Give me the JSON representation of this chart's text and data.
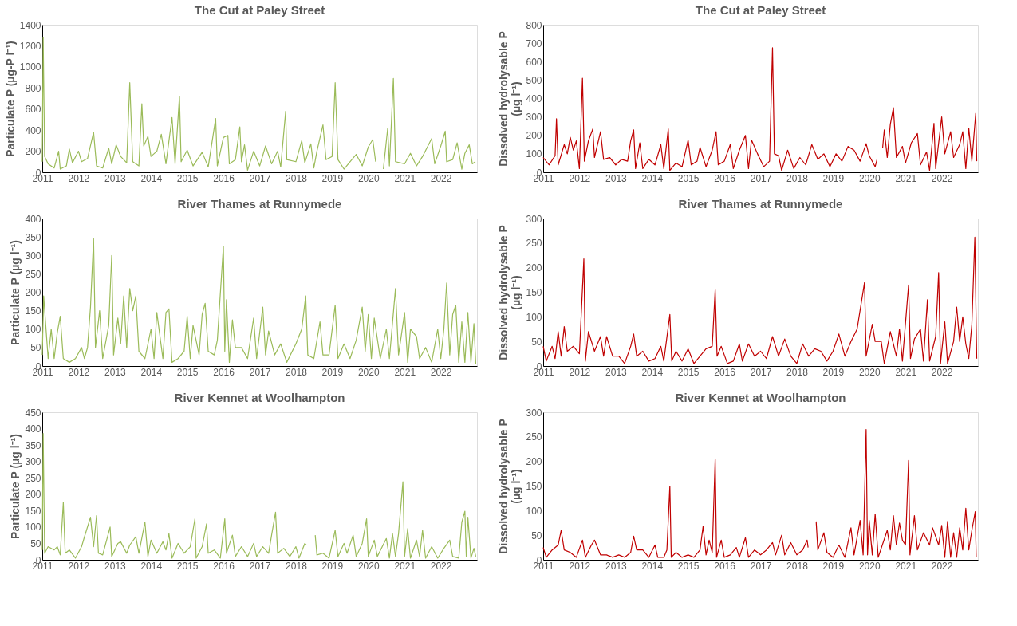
{
  "chart_data": [
    {
      "type": "line",
      "title": "The Cut at Paley Street",
      "ylabel": "Particulate P (µg-P l⁻¹)",
      "xlim": [
        "2011-01-01",
        "2023-01-01"
      ],
      "xticks": [
        "2011",
        "2012",
        "2013",
        "2014",
        "2015",
        "2016",
        "2017",
        "2018",
        "2019",
        "2020",
        "2021",
        "2022"
      ],
      "ylim": [
        0,
        1400
      ],
      "yticks": [
        0,
        200,
        400,
        600,
        800,
        1000,
        1200,
        1400
      ],
      "series": [
        {
          "color": "#9bbb59",
          "x": [
            "2011-01-01",
            "2011-01-10",
            "2011-01-25",
            "2011-03",
            "2011-05",
            "2011-06-15",
            "2011-07",
            "2011-09",
            "2011-10",
            "2011-11",
            "2012-01",
            "2012-02",
            "2012-04",
            "2012-06-01",
            "2012-07",
            "2012-09",
            "2012-11",
            "2012-12",
            "2013-01-15",
            "2013-03",
            "2013-05",
            "2013-06-01",
            "2013-07",
            "2013-09",
            "2013-10-01",
            "2013-10-20",
            "2013-12",
            "2014-01",
            "2014-03",
            "2014-04-15",
            "2014-06",
            "2014-08-01",
            "2014-09",
            "2014-10-15",
            "2014-11",
            "2015-01",
            "2015-03",
            "2015-06",
            "2015-08",
            "2015-10-15",
            "2015-11",
            "2016-01",
            "2016-02-15",
            "2016-03",
            "2016-05",
            "2016-06-15",
            "2016-07",
            "2016-08-01",
            "2016-09",
            "2016-11",
            "2017-01",
            "2017-03",
            "2017-05",
            "2017-07",
            "2017-08",
            "2017-09-20",
            "2017-10",
            "2018-01",
            "2018-03",
            "2018-04",
            "2018-06",
            "2018-07",
            "2018-08",
            "2018-10-01",
            "2018-11",
            "2019-01",
            "2019-02-01",
            "2019-03",
            "2019-05",
            "2019-07",
            "2019-09",
            "2019-11",
            "2020-01",
            "2020-02-15",
            "2020-03-15",
            "2020-05",
            "2020-06-01",
            "2020-07-15",
            "2020-08",
            "2020-09-10",
            "2020-10",
            "2021-01",
            "2021-03",
            "2021-05",
            "2021-07",
            "2021-10-01",
            "2021-11",
            "2022-01",
            "2022-02-15",
            "2022-03",
            "2022-05",
            "2022-06-15",
            "2022-08",
            "2022-09",
            "2022-10-15",
            "2022-11-15",
            "2022-12-15"
          ],
          "values": [
            100,
            1280,
            150,
            80,
            40,
            200,
            30,
            60,
            220,
            90,
            200,
            100,
            130,
            380,
            60,
            40,
            230,
            80,
            260,
            150,
            90,
            850,
            100,
            60,
            650,
            250,
            340,
            150,
            200,
            360,
            80,
            520,
            80,
            720,
            100,
            210,
            60,
            190,
            50,
            510,
            60,
            330,
            350,
            80,
            120,
            430,
            100,
            260,
            20,
            200,
            60,
            250,
            80,
            200,
            50,
            580,
            120,
            100,
            300,
            90,
            270,
            40,
            200,
            450,
            120,
            150,
            850,
            120,
            30,
            100,
            170,
            60,
            240,
            310,
            100,
            null,
            30,
            420,
            60,
            890,
            100,
            80,
            180,
            60,
            150,
            320,
            80,
            250,
            390,
            100,
            120,
            280,
            30,
            180,
            260,
            80,
            100
          ]
        }
      ]
    },
    {
      "type": "line",
      "title": "The Cut at Paley Street",
      "ylabel": "Dissolved hydrolysable P (µg l⁻¹)",
      "xlim": [
        "2011-01-01",
        "2023-01-01"
      ],
      "xticks": [
        "2011",
        "2012",
        "2013",
        "2014",
        "2015",
        "2016",
        "2017",
        "2018",
        "2019",
        "2020",
        "2021",
        "2022"
      ],
      "ylim": [
        0,
        800
      ],
      "yticks": [
        0,
        100,
        200,
        300,
        400,
        500,
        600,
        700,
        800
      ],
      "series": [
        {
          "color": "#c00000",
          "x": [
            "2011-01",
            "2011-03",
            "2011-05",
            "2011-05-15",
            "2011-06",
            "2011-08",
            "2011-09",
            "2011-10-01",
            "2011-11",
            "2011-12",
            "2012-01",
            "2012-02-01",
            "2012-02-20",
            "2012-04",
            "2012-05-15",
            "2012-06",
            "2012-08",
            "2012-09",
            "2012-11",
            "2013-01",
            "2013-03",
            "2013-05",
            "2013-06",
            "2013-07-01",
            "2013-07-20",
            "2013-09",
            "2013-10",
            "2013-12",
            "2014-02",
            "2014-04",
            "2014-05",
            "2014-06-15",
            "2014-07",
            "2014-09",
            "2014-11",
            "2015-01",
            "2015-02",
            "2015-04",
            "2015-05",
            "2015-07",
            "2015-09",
            "2015-10-10",
            "2015-11",
            "2016-01",
            "2016-03",
            "2016-04",
            "2016-06",
            "2016-08",
            "2016-09",
            "2016-10",
            "2016-12",
            "2017-02",
            "2017-04",
            "2017-05-01",
            "2017-05-20",
            "2017-07",
            "2017-08",
            "2017-10",
            "2017-12",
            "2018-02",
            "2018-04",
            "2018-06",
            "2018-08",
            "2018-10",
            "2018-12",
            "2019-02",
            "2019-04",
            "2019-06",
            "2019-08",
            "2019-10",
            "2019-12",
            "2020-01",
            "2020-03-01",
            "2020-03-20",
            "2020-04-15",
            "2020-05-15",
            "2020-06",
            "2020-07",
            "2020-08",
            "2020-09-01",
            "2020-10",
            "2020-12",
            "2021-01",
            "2021-03",
            "2021-05",
            "2021-06",
            "2021-08",
            "2021-09",
            "2021-10-15",
            "2021-11",
            "2022-01",
            "2022-02",
            "2022-04",
            "2022-05",
            "2022-07",
            "2022-08",
            "2022-09",
            "2022-10",
            "2022-11",
            "2022-12-10",
            "2022-12-20"
          ],
          "values": [
            80,
            40,
            90,
            290,
            40,
            150,
            100,
            190,
            120,
            170,
            20,
            510,
            60,
            170,
            235,
            80,
            220,
            70,
            80,
            40,
            70,
            60,
            170,
            230,
            20,
            160,
            20,
            70,
            40,
            150,
            20,
            235,
            10,
            50,
            30,
            175,
            40,
            60,
            135,
            30,
            120,
            220,
            40,
            60,
            150,
            20,
            120,
            200,
            20,
            175,
            100,
            30,
            60,
            675,
            100,
            90,
            10,
            120,
            20,
            80,
            40,
            150,
            70,
            100,
            30,
            100,
            60,
            140,
            120,
            60,
            155,
            90,
            30,
            70,
            null,
            130,
            230,
            80,
            260,
            350,
            80,
            140,
            50,
            160,
            210,
            40,
            110,
            10,
            265,
            20,
            300,
            100,
            220,
            80,
            150,
            220,
            20,
            240,
            60,
            320,
            60
          ]
        }
      ]
    },
    {
      "type": "line",
      "title": "River Thames at Runnymede",
      "ylabel": "Particulate P (µg l⁻¹)",
      "xlim": [
        "2011-01-01",
        "2023-01-01"
      ],
      "xticks": [
        "2011",
        "2012",
        "2013",
        "2014",
        "2015",
        "2016",
        "2017",
        "2018",
        "2019",
        "2020",
        "2021",
        "2022"
      ],
      "ylim": [
        0,
        400
      ],
      "yticks": [
        0,
        50,
        100,
        150,
        200,
        250,
        300,
        350,
        400
      ],
      "series": [
        {
          "color": "#9bbb59",
          "x": [
            "2011-01",
            "2011-01-15",
            "2011-03",
            "2011-04",
            "2011-05",
            "2011-06",
            "2011-07",
            "2011-08",
            "2011-10",
            "2011-12",
            "2012-02",
            "2012-03",
            "2012-04",
            "2012-05",
            "2012-06-01",
            "2012-06-20",
            "2012-08",
            "2012-09",
            "2012-11",
            "2012-12-01",
            "2012-12-20",
            "2013-02",
            "2013-03",
            "2013-04",
            "2013-05",
            "2013-06",
            "2013-07",
            "2013-08",
            "2013-09",
            "2013-11",
            "2014-01",
            "2014-02",
            "2014-03",
            "2014-05",
            "2014-06",
            "2014-07",
            "2014-08",
            "2014-10",
            "2014-12",
            "2015-01",
            "2015-02",
            "2015-03",
            "2015-05",
            "2015-06",
            "2015-07",
            "2015-08",
            "2015-10",
            "2015-11",
            "2016-01-01",
            "2016-01-15",
            "2016-02",
            "2016-03",
            "2016-04",
            "2016-05",
            "2016-07",
            "2016-09",
            "2016-11",
            "2016-12",
            "2017-02",
            "2017-03",
            "2017-04",
            "2017-06",
            "2017-08",
            "2017-10",
            "2018-01",
            "2018-03",
            "2018-04-10",
            "2018-05",
            "2018-07",
            "2018-09",
            "2018-10",
            "2018-12",
            "2019-02",
            "2019-03",
            "2019-05",
            "2019-07",
            "2019-09",
            "2019-11",
            "2019-12",
            "2020-01",
            "2020-02",
            "2020-03",
            "2020-05",
            "2020-07",
            "2020-08",
            "2020-10",
            "2020-11",
            "2021-01",
            "2021-02",
            "2021-03",
            "2021-05",
            "2021-06",
            "2021-08",
            "2021-10",
            "2021-12",
            "2022-01",
            "2022-02",
            "2022-03",
            "2022-04",
            "2022-05",
            "2022-06",
            "2022-07",
            "2022-08",
            "2022-09",
            "2022-10",
            "2022-11",
            "2022-12-01",
            "2022-12-20"
          ],
          "values": [
            30,
            190,
            20,
            100,
            20,
            90,
            135,
            20,
            10,
            20,
            50,
            20,
            50,
            160,
            345,
            50,
            150,
            20,
            110,
            300,
            30,
            130,
            60,
            190,
            50,
            210,
            150,
            190,
            40,
            20,
            100,
            20,
            145,
            20,
            145,
            155,
            10,
            20,
            40,
            135,
            20,
            110,
            30,
            140,
            170,
            40,
            30,
            70,
            325,
            40,
            180,
            10,
            125,
            50,
            50,
            20,
            130,
            20,
            160,
            30,
            95,
            30,
            60,
            10,
            60,
            100,
            190,
            30,
            20,
            120,
            30,
            30,
            165,
            20,
            60,
            20,
            70,
            160,
            40,
            140,
            20,
            130,
            20,
            100,
            20,
            210,
            30,
            145,
            10,
            100,
            80,
            20,
            50,
            10,
            100,
            20,
            100,
            225,
            30,
            140,
            165,
            10,
            120,
            10,
            145,
            10,
            115,
            5
          ]
        }
      ]
    },
    {
      "type": "line",
      "title": "River Thames at Runnymede",
      "ylabel": "Dissolved hydrolysable P (µg l⁻¹)",
      "xlim": [
        "2011-01-01",
        "2023-01-01"
      ],
      "xticks": [
        "2011",
        "2012",
        "2013",
        "2014",
        "2015",
        "2016",
        "2017",
        "2018",
        "2019",
        "2020",
        "2021",
        "2022"
      ],
      "ylim": [
        0,
        300
      ],
      "yticks": [
        0,
        50,
        100,
        150,
        200,
        250,
        300
      ],
      "series": [
        {
          "color": "#c00000",
          "x": [
            "2011-01",
            "2011-02",
            "2011-04",
            "2011-05",
            "2011-06",
            "2011-07",
            "2011-08",
            "2011-09",
            "2011-11",
            "2012-01",
            "2012-02-15",
            "2012-03",
            "2012-04",
            "2012-06",
            "2012-08",
            "2012-09",
            "2012-10",
            "2012-12",
            "2013-02",
            "2013-04",
            "2013-06",
            "2013-07",
            "2013-08",
            "2013-10",
            "2013-12",
            "2014-02",
            "2014-04",
            "2014-05",
            "2014-07-01",
            "2014-07-20",
            "2014-09",
            "2014-11",
            "2015-01",
            "2015-03",
            "2015-05",
            "2015-07",
            "2015-09",
            "2015-10-01",
            "2015-10-20",
            "2015-12",
            "2016-02",
            "2016-04",
            "2016-06",
            "2016-07",
            "2016-09",
            "2016-11",
            "2017-01",
            "2017-03",
            "2017-05",
            "2017-07",
            "2017-09",
            "2017-11",
            "2018-01",
            "2018-03",
            "2018-05",
            "2018-07",
            "2018-09",
            "2018-11",
            "2019-01",
            "2019-03",
            "2019-05",
            "2019-07",
            "2019-09",
            "2019-11-15",
            "2019-12",
            "2020-02",
            "2020-03",
            "2020-05",
            "2020-06",
            "2020-08",
            "2020-10",
            "2020-11",
            "2020-12",
            "2021-02-01",
            "2021-02-20",
            "2021-04",
            "2021-06",
            "2021-07",
            "2021-08-10",
            "2021-09",
            "2021-11",
            "2021-12-01",
            "2021-12-20",
            "2022-02",
            "2022-03",
            "2022-05",
            "2022-06",
            "2022-07",
            "2022-08",
            "2022-09",
            "2022-10",
            "2022-11",
            "2022-12-01",
            "2022-12-20"
          ],
          "values": [
            40,
            10,
            40,
            15,
            70,
            20,
            80,
            30,
            40,
            25,
            218,
            10,
            70,
            30,
            60,
            20,
            60,
            20,
            20,
            5,
            40,
            65,
            20,
            30,
            10,
            15,
            40,
            10,
            105,
            10,
            30,
            10,
            35,
            5,
            20,
            35,
            40,
            155,
            20,
            40,
            5,
            10,
            45,
            10,
            45,
            20,
            30,
            15,
            60,
            20,
            55,
            20,
            5,
            45,
            20,
            35,
            30,
            10,
            30,
            65,
            20,
            50,
            75,
            170,
            20,
            85,
            50,
            50,
            5,
            70,
            20,
            75,
            10,
            165,
            15,
            55,
            75,
            10,
            135,
            10,
            60,
            190,
            5,
            90,
            5,
            50,
            120,
            50,
            100,
            45,
            15,
            85,
            262,
            15
          ]
        }
      ]
    },
    {
      "type": "line",
      "title": "River Kennet at Woolhampton",
      "ylabel": "Particulate P (µg l⁻¹)",
      "xlim": [
        "2011-01-01",
        "2023-01-01"
      ],
      "xticks": [
        "2011",
        "2012",
        "2013",
        "2014",
        "2015",
        "2016",
        "2017",
        "2018",
        "2019",
        "2020",
        "2021",
        "2022"
      ],
      "ylim": [
        0,
        450
      ],
      "yticks": [
        0,
        50,
        100,
        150,
        200,
        250,
        300,
        350,
        400,
        450
      ],
      "series": [
        {
          "color": "#9bbb59",
          "x": [
            "2011-01-01",
            "2011-01-10",
            "2011-01-25",
            "2011-03",
            "2011-05",
            "2011-06",
            "2011-07",
            "2011-08-01",
            "2011-08-20",
            "2011-10",
            "2011-12",
            "2012-02",
            "2012-03",
            "2012-05",
            "2012-06",
            "2012-07-01",
            "2012-07-20",
            "2012-09",
            "2012-11-15",
            "2012-12",
            "2013-02",
            "2013-03",
            "2013-05",
            "2013-06",
            "2013-08",
            "2013-09",
            "2013-11-01",
            "2013-12",
            "2014-01",
            "2014-03",
            "2014-05",
            "2014-06",
            "2014-07",
            "2014-08",
            "2014-10",
            "2014-12",
            "2015-02",
            "2015-03-20",
            "2015-04",
            "2015-06",
            "2015-07-15",
            "2015-08",
            "2015-10",
            "2015-12",
            "2016-01-15",
            "2016-02",
            "2016-04",
            "2016-05",
            "2016-07",
            "2016-09",
            "2016-11",
            "2016-12",
            "2017-02",
            "2017-04",
            "2017-05",
            "2017-06-10",
            "2017-07",
            "2017-09",
            "2017-11",
            "2018-01",
            "2018-02",
            "2018-04-01",
            "2018-04-15",
            "2018-06-01",
            "2018-07-15",
            "2018-08",
            "2018-10",
            "2018-12",
            "2019-02",
            "2019-03",
            "2019-05",
            "2019-06",
            "2019-08",
            "2019-09",
            "2019-11",
            "2019-12-15",
            "2020-01",
            "2020-03",
            "2020-04",
            "2020-07",
            "2020-08",
            "2020-09",
            "2020-10",
            "2020-11",
            "2020-12-15",
            "2021-01",
            "2021-02",
            "2021-03",
            "2021-05",
            "2021-06",
            "2021-07",
            "2021-08",
            "2021-10",
            "2021-12",
            "2022-02",
            "2022-04",
            "2022-05",
            "2022-07",
            "2022-08",
            "2022-09-01",
            "2022-09-15",
            "2022-10",
            "2022-11",
            "2022-12",
            "2022-12-20"
          ],
          "values": [
            30,
            385,
            20,
            40,
            30,
            40,
            15,
            175,
            20,
            30,
            5,
            40,
            70,
            130,
            40,
            135,
            20,
            15,
            100,
            10,
            50,
            55,
            20,
            45,
            70,
            20,
            115,
            10,
            60,
            20,
            55,
            30,
            80,
            5,
            50,
            20,
            40,
            125,
            5,
            40,
            110,
            20,
            30,
            5,
            125,
            20,
            75,
            10,
            40,
            10,
            50,
            10,
            40,
            20,
            75,
            145,
            20,
            35,
            10,
            40,
            5,
            50,
            45,
            null,
            75,
            15,
            20,
            5,
            90,
            10,
            50,
            20,
            75,
            10,
            50,
            125,
            10,
            60,
            10,
            65,
            5,
            80,
            10,
            80,
            238,
            10,
            95,
            5,
            60,
            10,
            90,
            5,
            40,
            5,
            35,
            60,
            10,
            5,
            115,
            148,
            10,
            130,
            5,
            35,
            10
          ]
        }
      ]
    },
    {
      "type": "line",
      "title": "River Kennet at Woolhampton",
      "ylabel": "Dissolved hydrolysable P (µg l⁻¹)",
      "xlim": [
        "2011-01-01",
        "2023-01-01"
      ],
      "xticks": [
        "2011",
        "2012",
        "2013",
        "2014",
        "2015",
        "2016",
        "2017",
        "2018",
        "2019",
        "2020",
        "2021",
        "2022"
      ],
      "ylim": [
        0,
        300
      ],
      "yticks": [
        0,
        50,
        100,
        150,
        200,
        250,
        300
      ],
      "series": [
        {
          "color": "#c00000",
          "x": [
            "2011-01",
            "2011-02",
            "2011-04",
            "2011-06",
            "2011-07",
            "2011-08",
            "2011-10",
            "2011-12",
            "2012-02",
            "2012-03",
            "2012-05",
            "2012-06",
            "2012-08",
            "2012-10",
            "2012-12",
            "2013-02",
            "2013-04",
            "2013-06",
            "2013-07",
            "2013-08",
            "2013-10",
            "2013-12",
            "2014-02",
            "2014-03",
            "2014-05",
            "2014-06",
            "2014-07-01",
            "2014-07-15",
            "2014-09",
            "2014-11",
            "2015-01",
            "2015-03",
            "2015-05",
            "2015-06",
            "2015-07",
            "2015-08",
            "2015-09",
            "2015-10-01",
            "2015-10-15",
            "2015-12",
            "2016-01",
            "2016-03",
            "2016-05",
            "2016-06",
            "2016-08",
            "2016-09",
            "2016-11",
            "2017-01",
            "2017-03",
            "2017-05",
            "2017-06",
            "2017-08",
            "2017-09",
            "2017-11",
            "2018-01",
            "2018-03",
            "2018-04-15",
            "2018-04-25",
            "2018-06-01",
            "2018-07-15",
            "2018-08",
            "2018-10",
            "2018-11",
            "2019-01",
            "2019-03",
            "2019-05",
            "2019-07",
            "2019-08",
            "2019-10",
            "2019-11",
            "2019-12-01",
            "2019-12-15",
            "2020-01",
            "2020-02",
            "2020-03",
            "2020-04",
            "2020-07",
            "2020-08",
            "2020-09",
            "2020-10",
            "2020-11",
            "2020-12",
            "2021-01",
            "2021-02-01",
            "2021-02-15",
            "2021-04",
            "2021-05",
            "2021-07",
            "2021-09",
            "2021-10",
            "2021-12",
            "2022-01",
            "2022-02",
            "2022-03",
            "2022-04",
            "2022-05",
            "2022-06",
            "2022-07",
            "2022-08",
            "2022-09",
            "2022-10",
            "2022-11",
            "2022-12-05",
            "2022-12-15"
          ],
          "values": [
            25,
            5,
            20,
            30,
            60,
            20,
            15,
            5,
            40,
            5,
            30,
            40,
            10,
            10,
            5,
            10,
            5,
            15,
            48,
            20,
            20,
            5,
            30,
            5,
            5,
            20,
            150,
            5,
            15,
            5,
            10,
            5,
            20,
            68,
            10,
            40,
            15,
            205,
            5,
            40,
            5,
            10,
            25,
            5,
            45,
            5,
            20,
            10,
            20,
            35,
            10,
            50,
            10,
            35,
            10,
            20,
            40,
            25,
            null,
            78,
            20,
            55,
            15,
            5,
            30,
            5,
            65,
            10,
            80,
            10,
            265,
            10,
            80,
            10,
            93,
            5,
            60,
            20,
            90,
            30,
            75,
            40,
            30,
            202,
            10,
            90,
            20,
            55,
            30,
            65,
            30,
            70,
            5,
            78,
            5,
            55,
            5,
            65,
            20,
            105,
            20,
            60,
            98,
            5
          ]
        }
      ]
    }
  ]
}
